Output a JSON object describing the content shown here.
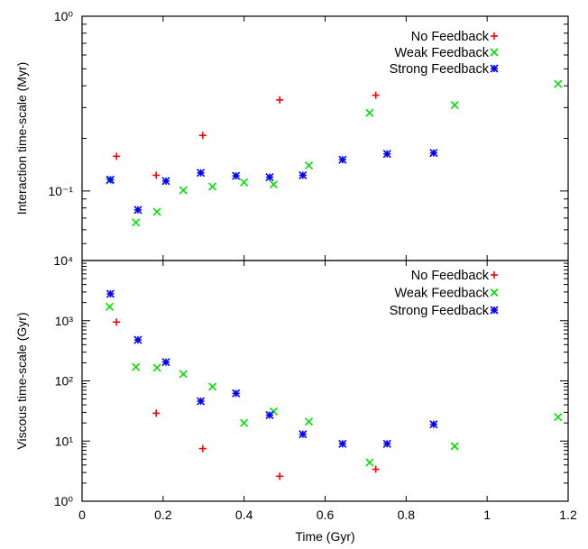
{
  "chart_data": [
    {
      "type": "scatter",
      "title": "",
      "xlabel": "",
      "ylabel": "Interaction time-scale (Myr)",
      "xlim": [
        0,
        1.2
      ],
      "ylim": [
        0.04,
        1.0
      ],
      "yscale": "log",
      "ytick_labels": [
        "10⁴",
        "10⁻¹",
        "10⁰"
      ],
      "legend_position": "top-right",
      "grid": false,
      "series": [
        {
          "name": "No Feedback",
          "marker": "plus",
          "color": "#ff0000",
          "x": [
            0.085,
            0.183,
            0.298,
            0.488,
            0.725
          ],
          "y": [
            0.158,
            0.123,
            0.208,
            0.332,
            0.353
          ]
        },
        {
          "name": "Weak Feedback",
          "marker": "cross",
          "color": "#00e000",
          "x": [
            0.068,
            0.133,
            0.185,
            0.25,
            0.322,
            0.4,
            0.473,
            0.56,
            0.71,
            0.92,
            1.175
          ],
          "y": [
            0.115,
            0.066,
            0.076,
            0.101,
            0.106,
            0.112,
            0.109,
            0.14,
            0.28,
            0.31,
            0.41
          ]
        },
        {
          "name": "Strong Feedback",
          "marker": "star",
          "color": "#0000ff",
          "x": [
            0.07,
            0.138,
            0.207,
            0.293,
            0.38,
            0.463,
            0.545,
            0.643,
            0.753,
            0.868
          ],
          "y": [
            0.116,
            0.078,
            0.114,
            0.127,
            0.122,
            0.12,
            0.123,
            0.151,
            0.163,
            0.165
          ]
        }
      ]
    },
    {
      "type": "scatter",
      "title": "",
      "xlabel": "Time (Gyr)",
      "ylabel": "Viscous time-scale (Gyr)",
      "xlim": [
        0,
        1.2
      ],
      "ylim": [
        1,
        10000
      ],
      "yscale": "log",
      "xtick_labels": [
        "0",
        "0.2",
        "0.4",
        "0.6",
        "0.8",
        "1",
        "1.2"
      ],
      "ytick_labels": [
        "10⁰",
        "10¹",
        "10²",
        "10³"
      ],
      "legend_position": "top-right",
      "grid": false,
      "series": [
        {
          "name": "No Feedback",
          "marker": "plus",
          "color": "#ff0000",
          "x": [
            0.085,
            0.183,
            0.298,
            0.488,
            0.725
          ],
          "y": [
            950,
            29,
            7.5,
            2.6,
            3.4
          ]
        },
        {
          "name": "Weak Feedback",
          "marker": "cross",
          "color": "#00e000",
          "x": [
            0.068,
            0.133,
            0.185,
            0.25,
            0.322,
            0.4,
            0.473,
            0.56,
            0.71,
            0.92,
            1.175
          ],
          "y": [
            1700,
            170,
            165,
            130,
            80,
            20,
            31,
            21,
            4.4,
            8.2,
            25
          ]
        },
        {
          "name": "Strong Feedback",
          "marker": "star",
          "color": "#0000ff",
          "x": [
            0.07,
            0.138,
            0.207,
            0.293,
            0.38,
            0.463,
            0.545,
            0.643,
            0.753,
            0.868
          ],
          "y": [
            2800,
            480,
            205,
            46,
            62,
            27,
            13,
            9,
            9,
            19
          ]
        }
      ]
    }
  ]
}
